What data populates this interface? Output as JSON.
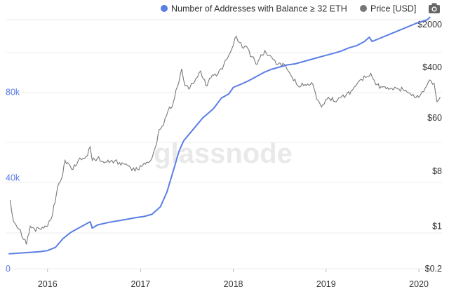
{
  "watermark": "glassnode",
  "legend": [
    {
      "label": "Number of Addresses with Balance ≥ 32 ETH",
      "color": "#5b7ee5"
    },
    {
      "label": "Price [USD]",
      "color": "#777777"
    }
  ],
  "camera_icon": "camera-icon",
  "chart_data": {
    "type": "line",
    "xlabel": "",
    "ylabel_left": "",
    "ylabel_right": "",
    "x_ticks": [
      "2016",
      "2017",
      "2018",
      "2019",
      "2020"
    ],
    "left_axis": {
      "scale": "linear",
      "range": [
        0,
        120000
      ],
      "ticks": [
        {
          "value": 0,
          "label": "0"
        },
        {
          "value": 40000,
          "label": "40k"
        },
        {
          "value": 80000,
          "label": "80k"
        }
      ],
      "color": "#5b7ee5"
    },
    "right_axis": {
      "scale": "log",
      "range": [
        0.2,
        2500
      ],
      "ticks": [
        {
          "value": 0.2,
          "label": "$0.2"
        },
        {
          "value": 1,
          "label": "$1"
        },
        {
          "value": 8,
          "label": "$8"
        },
        {
          "value": 60,
          "label": "$60"
        },
        {
          "value": 400,
          "label": "$400"
        },
        {
          "value": 2000,
          "label": "$2000"
        }
      ],
      "color": "#333333"
    },
    "grid": true,
    "legend_position": "top-right",
    "series": [
      {
        "name": "Number of Addresses with Balance ≥ 32 ETH",
        "axis": "left",
        "color": "#5b7ee5",
        "x": [
          "2015-08-01",
          "2015-10-01",
          "2015-12-01",
          "2016-01-01",
          "2016-02-01",
          "2016-03-01",
          "2016-04-01",
          "2016-05-01",
          "2016-06-01",
          "2016-06-17",
          "2016-06-25",
          "2016-07-15",
          "2016-09-01",
          "2016-11-01",
          "2016-12-15",
          "2017-01-15",
          "2017-02-15",
          "2017-03-01",
          "2017-03-20",
          "2017-04-15",
          "2017-05-15",
          "2017-06-01",
          "2017-06-20",
          "2017-08-01",
          "2017-09-01",
          "2017-10-15",
          "2017-11-15",
          "2017-12-15",
          "2018-01-01",
          "2018-02-01",
          "2018-03-01",
          "2018-04-01",
          "2018-05-01",
          "2018-06-01",
          "2018-07-01",
          "2018-08-01",
          "2018-09-01",
          "2018-10-01",
          "2018-11-01",
          "2018-12-01",
          "2019-01-01",
          "2019-02-01",
          "2019-03-01",
          "2019-04-01",
          "2019-05-01",
          "2019-06-01",
          "2019-06-20",
          "2019-07-01",
          "2019-08-01",
          "2019-09-01",
          "2019-10-01",
          "2019-11-01",
          "2019-12-01",
          "2020-01-01",
          "2020-02-01",
          "2020-02-15"
        ],
        "values": [
          7000,
          7500,
          8000,
          8500,
          10000,
          14000,
          17000,
          19000,
          21000,
          22000,
          19000,
          20500,
          21800,
          23000,
          24000,
          24500,
          25500,
          27000,
          29000,
          36000,
          48000,
          55000,
          60000,
          66000,
          70500,
          75000,
          80000,
          82000,
          85000,
          86500,
          88000,
          90000,
          92000,
          93500,
          94500,
          95500,
          96000,
          97000,
          98000,
          99000,
          100000,
          101000,
          102000,
          103500,
          104500,
          106500,
          108500,
          106500,
          108000,
          109500,
          111000,
          112500,
          114000,
          115500,
          116500,
          118000
        ]
      },
      {
        "name": "Price [USD]",
        "axis": "right",
        "color": "#777777",
        "x": [
          "2015-08-07",
          "2015-08-20",
          "2015-09-10",
          "2015-10-10",
          "2015-10-25",
          "2015-11-10",
          "2015-12-01",
          "2016-01-01",
          "2016-01-20",
          "2016-02-10",
          "2016-02-25",
          "2016-03-10",
          "2016-03-20",
          "2016-04-10",
          "2016-05-01",
          "2016-05-20",
          "2016-06-01",
          "2016-06-17",
          "2016-06-25",
          "2016-07-15",
          "2016-08-10",
          "2016-09-10",
          "2016-10-10",
          "2016-11-10",
          "2016-12-10",
          "2017-01-10",
          "2017-02-10",
          "2017-03-01",
          "2017-03-15",
          "2017-04-01",
          "2017-04-20",
          "2017-05-05",
          "2017-05-25",
          "2017-06-12",
          "2017-06-25",
          "2017-07-15",
          "2017-08-01",
          "2017-08-25",
          "2017-09-15",
          "2017-10-10",
          "2017-11-01",
          "2017-11-25",
          "2017-12-20",
          "2018-01-13",
          "2018-02-05",
          "2018-02-20",
          "2018-03-15",
          "2018-04-05",
          "2018-04-20",
          "2018-05-10",
          "2018-06-01",
          "2018-06-25",
          "2018-07-20",
          "2018-08-15",
          "2018-09-12",
          "2018-10-10",
          "2018-11-10",
          "2018-11-25",
          "2018-12-14",
          "2019-01-10",
          "2019-02-05",
          "2019-02-25",
          "2019-03-20",
          "2019-04-15",
          "2019-05-15",
          "2019-06-10",
          "2019-06-26",
          "2019-07-15",
          "2019-08-10",
          "2019-09-10",
          "2019-10-10",
          "2019-11-10",
          "2019-12-15",
          "2020-01-01",
          "2020-01-20",
          "2020-02-12",
          "2020-03-01",
          "2020-03-12",
          "2020-03-25"
        ],
        "values": [
          2.7,
          1.2,
          0.9,
          0.5,
          1.0,
          0.9,
          0.9,
          1.0,
          1.5,
          4.5,
          6.0,
          12,
          11,
          8.5,
          12,
          13,
          14,
          20,
          12,
          13,
          11,
          12,
          11,
          10,
          8,
          10,
          12,
          20,
          38,
          45,
          80,
          90,
          190,
          380,
          200,
          190,
          230,
          350,
          200,
          300,
          310,
          450,
          700,
          1300,
          850,
          900,
          600,
          450,
          650,
          700,
          580,
          450,
          450,
          300,
          200,
          210,
          210,
          120,
          90,
          130,
          110,
          130,
          140,
          170,
          250,
          280,
          320,
          210,
          190,
          180,
          180,
          170,
          130,
          130,
          160,
          250,
          220,
          110,
          130
        ]
      }
    ]
  }
}
